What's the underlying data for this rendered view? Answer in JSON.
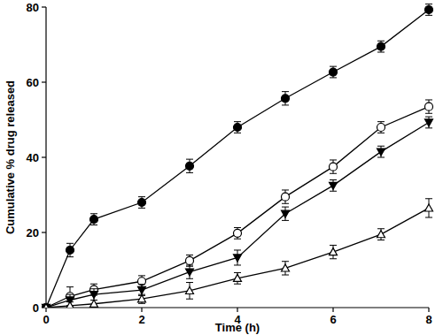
{
  "chart_data": {
    "type": "line",
    "x_label": "Time (h)",
    "y_label": "Cumulative % drug released",
    "x": [
      0,
      0.5,
      1,
      2,
      3,
      4,
      5,
      6,
      7,
      8
    ],
    "xlim": [
      0,
      8
    ],
    "xticks": [
      0,
      2,
      4,
      6,
      8
    ],
    "ylim": [
      0,
      80
    ],
    "yticks": [
      0,
      20,
      40,
      60,
      80
    ],
    "grid": false,
    "series": [
      {
        "color": "#000000",
        "marker": "circle",
        "line_style": "solid",
        "values": [
          0,
          15.3,
          23.5,
          28,
          37.7,
          48,
          55.7,
          62.7,
          69.5,
          79.3
        ],
        "errors": [
          0,
          1.8,
          1.5,
          1.5,
          1.8,
          1.5,
          1.8,
          1.5,
          1.5,
          1.5
        ]
      },
      {
        "color": "#000000",
        "marker": "open-circle",
        "line_style": "solid",
        "values": [
          0,
          3,
          4.8,
          7,
          12.5,
          19.8,
          29.5,
          37.5,
          48,
          53.5
        ],
        "errors": [
          0,
          2.5,
          1.5,
          1.5,
          1.5,
          1.5,
          1.8,
          1.8,
          1.5,
          1.8
        ]
      },
      {
        "color": "#000000",
        "marker": "triangle-down",
        "line_style": "solid",
        "values": [
          0,
          2,
          3.5,
          4.7,
          9.5,
          13.3,
          25,
          32.5,
          41.5,
          49.3
        ],
        "errors": [
          0,
          1.5,
          1.5,
          1.5,
          1.8,
          2,
          1.8,
          1.5,
          1.5,
          1.5
        ]
      },
      {
        "color": "#000000",
        "marker": "open-triangle",
        "line_style": "solid",
        "values": [
          0,
          0.5,
          1,
          2.3,
          4.5,
          7.8,
          10.5,
          14.8,
          19.5,
          26.5
        ],
        "errors": [
          0,
          1,
          1,
          1.2,
          2.2,
          1.5,
          1.8,
          1.8,
          1.5,
          2.5
        ]
      }
    ]
  }
}
